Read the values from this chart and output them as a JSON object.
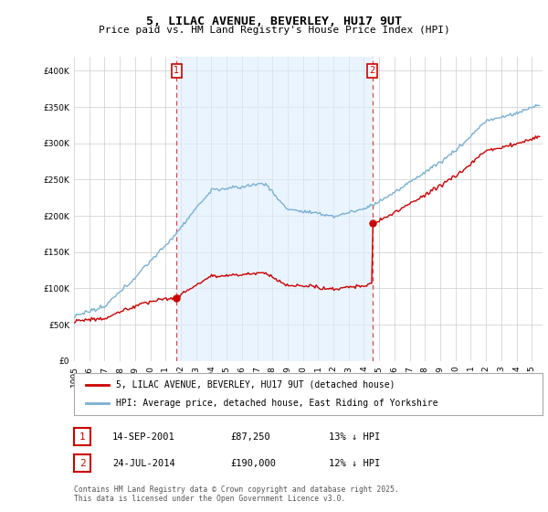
{
  "title": "5, LILAC AVENUE, BEVERLEY, HU17 9UT",
  "subtitle": "Price paid vs. HM Land Registry's House Price Index (HPI)",
  "legend_line1": "5, LILAC AVENUE, BEVERLEY, HU17 9UT (detached house)",
  "legend_line2": "HPI: Average price, detached house, East Riding of Yorkshire",
  "annotation1_date": "14-SEP-2001",
  "annotation1_price": "£87,250",
  "annotation1_hpi": "13% ↓ HPI",
  "annotation2_date": "24-JUL-2014",
  "annotation2_price": "£190,000",
  "annotation2_hpi": "12% ↓ HPI",
  "footer": "Contains HM Land Registry data © Crown copyright and database right 2025.\nThis data is licensed under the Open Government Licence v3.0.",
  "ylim": [
    0,
    420000
  ],
  "yticks": [
    0,
    50000,
    100000,
    150000,
    200000,
    250000,
    300000,
    350000,
    400000
  ],
  "red_line_color": "#cc0000",
  "blue_line_color": "#7ab0d4",
  "vline_color": "#dd4444",
  "grid_color": "#cccccc",
  "bg_color": "#ffffff",
  "shade_color": "#ddeeff",
  "annotation_box_color": "#cc0000",
  "sale1_year": 2001.71,
  "sale1_price": 87250,
  "sale2_year": 2014.55,
  "sale2_price": 190000
}
